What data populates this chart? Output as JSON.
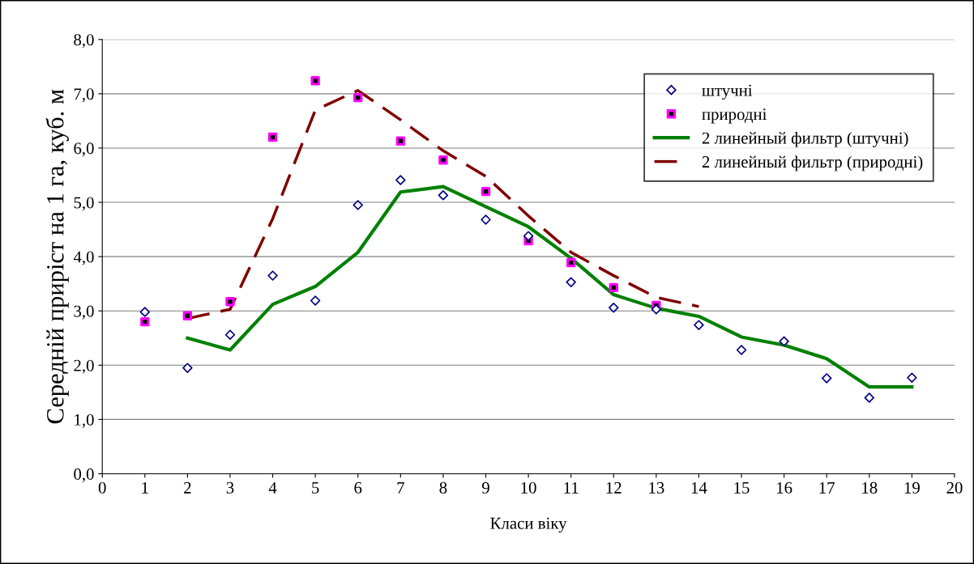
{
  "chart_data": {
    "type": "scatter",
    "xlabel": "Класи віку",
    "ylabel": "Середній приріст на 1 га, куб. м",
    "xlim": [
      0,
      20
    ],
    "xticks": [
      0,
      1,
      2,
      3,
      4,
      5,
      6,
      7,
      8,
      9,
      10,
      11,
      12,
      13,
      14,
      15,
      16,
      17,
      18,
      19,
      20
    ],
    "ylim": [
      0,
      8
    ],
    "yticks": [
      {
        "value": 0,
        "label": "0,0"
      },
      {
        "value": 1,
        "label": "1,0"
      },
      {
        "value": 2,
        "label": "2,0"
      },
      {
        "value": 3,
        "label": "3,0"
      },
      {
        "value": 4,
        "label": "4,0"
      },
      {
        "value": 5,
        "label": "5,0"
      },
      {
        "value": 6,
        "label": "6,0"
      },
      {
        "value": 7,
        "label": "7,0"
      },
      {
        "value": 8,
        "label": "8,0"
      }
    ],
    "grid": "y",
    "legend": "top right",
    "series": [
      {
        "name": "штучні",
        "marker": "diamond",
        "color": "#000080",
        "x": [
          1,
          2,
          3,
          4,
          5,
          6,
          7,
          8,
          9,
          10,
          11,
          12,
          13,
          14,
          15,
          16,
          17,
          18,
          19
        ],
        "values": [
          2.98,
          1.95,
          2.56,
          3.65,
          3.19,
          4.95,
          5.41,
          5.13,
          4.68,
          4.38,
          3.53,
          3.06,
          3.03,
          2.74,
          2.28,
          2.44,
          1.76,
          1.4,
          1.77
        ]
      },
      {
        "name": "природні",
        "marker": "square",
        "color": "#ff00ff",
        "x": [
          1,
          2,
          3,
          4,
          5,
          6,
          7,
          8,
          9,
          10,
          11,
          12,
          13
        ],
        "values": [
          2.8,
          2.91,
          3.17,
          6.2,
          7.24,
          6.93,
          6.13,
          5.78,
          5.2,
          4.29,
          3.89,
          3.43,
          3.1
        ]
      },
      {
        "name": "2 линейный фильтр (штучні)",
        "type": "line",
        "line_style": "solid",
        "color": "#008000",
        "x": [
          2,
          3,
          4,
          5,
          6,
          7,
          8,
          9,
          10,
          11,
          12,
          13,
          14,
          15,
          16,
          17,
          18,
          19
        ],
        "values": [
          2.5,
          2.28,
          3.12,
          3.45,
          4.08,
          5.19,
          5.29,
          4.92,
          4.55,
          3.97,
          3.3,
          3.05,
          2.9,
          2.52,
          2.37,
          2.12,
          1.6,
          1.6
        ]
      },
      {
        "name": "2 линейный фильтр (природні)",
        "type": "line",
        "line_style": "dashed",
        "color": "#800000",
        "x": [
          2,
          3,
          4,
          5,
          6,
          7,
          8,
          9,
          10,
          11,
          12,
          13,
          14
        ],
        "values": [
          2.86,
          3.03,
          4.7,
          6.7,
          7.06,
          6.52,
          5.95,
          5.48,
          4.75,
          4.08,
          3.65,
          3.25,
          3.08
        ]
      }
    ]
  }
}
